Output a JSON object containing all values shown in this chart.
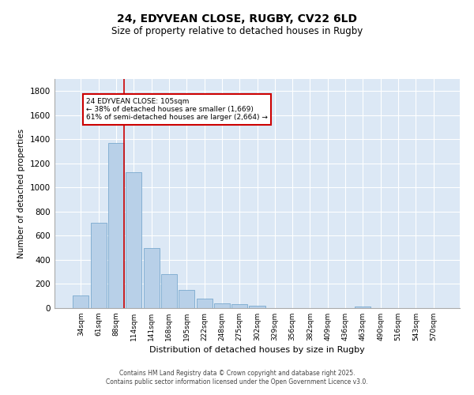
{
  "title_line1": "24, EDYVEAN CLOSE, RUGBY, CV22 6LD",
  "title_line2": "Size of property relative to detached houses in Rugby",
  "xlabel": "Distribution of detached houses by size in Rugby",
  "ylabel": "Number of detached properties",
  "categories": [
    "34sqm",
    "61sqm",
    "88sqm",
    "114sqm",
    "141sqm",
    "168sqm",
    "195sqm",
    "222sqm",
    "248sqm",
    "275sqm",
    "302sqm",
    "329sqm",
    "356sqm",
    "382sqm",
    "409sqm",
    "436sqm",
    "463sqm",
    "490sqm",
    "516sqm",
    "543sqm",
    "570sqm"
  ],
  "values": [
    105,
    705,
    1370,
    1130,
    500,
    280,
    148,
    78,
    38,
    30,
    18,
    0,
    0,
    0,
    0,
    0,
    15,
    0,
    0,
    0,
    0
  ],
  "bar_color": "#b8d0e8",
  "bar_edge_color": "#6a9fc8",
  "background_color": "#dce8f5",
  "grid_color": "#ffffff",
  "annotation_text": "24 EDYVEAN CLOSE: 105sqm\n← 38% of detached houses are smaller (1,669)\n61% of semi-detached houses are larger (2,664) →",
  "annotation_box_facecolor": "#ffffff",
  "annotation_box_edgecolor": "#cc0000",
  "vline_color": "#cc0000",
  "vline_x_index": 2,
  "ylim": [
    0,
    1900
  ],
  "yticks": [
    0,
    200,
    400,
    600,
    800,
    1000,
    1200,
    1400,
    1600,
    1800
  ],
  "footer_line1": "Contains HM Land Registry data © Crown copyright and database right 2025.",
  "footer_line2": "Contains public sector information licensed under the Open Government Licence v3.0."
}
